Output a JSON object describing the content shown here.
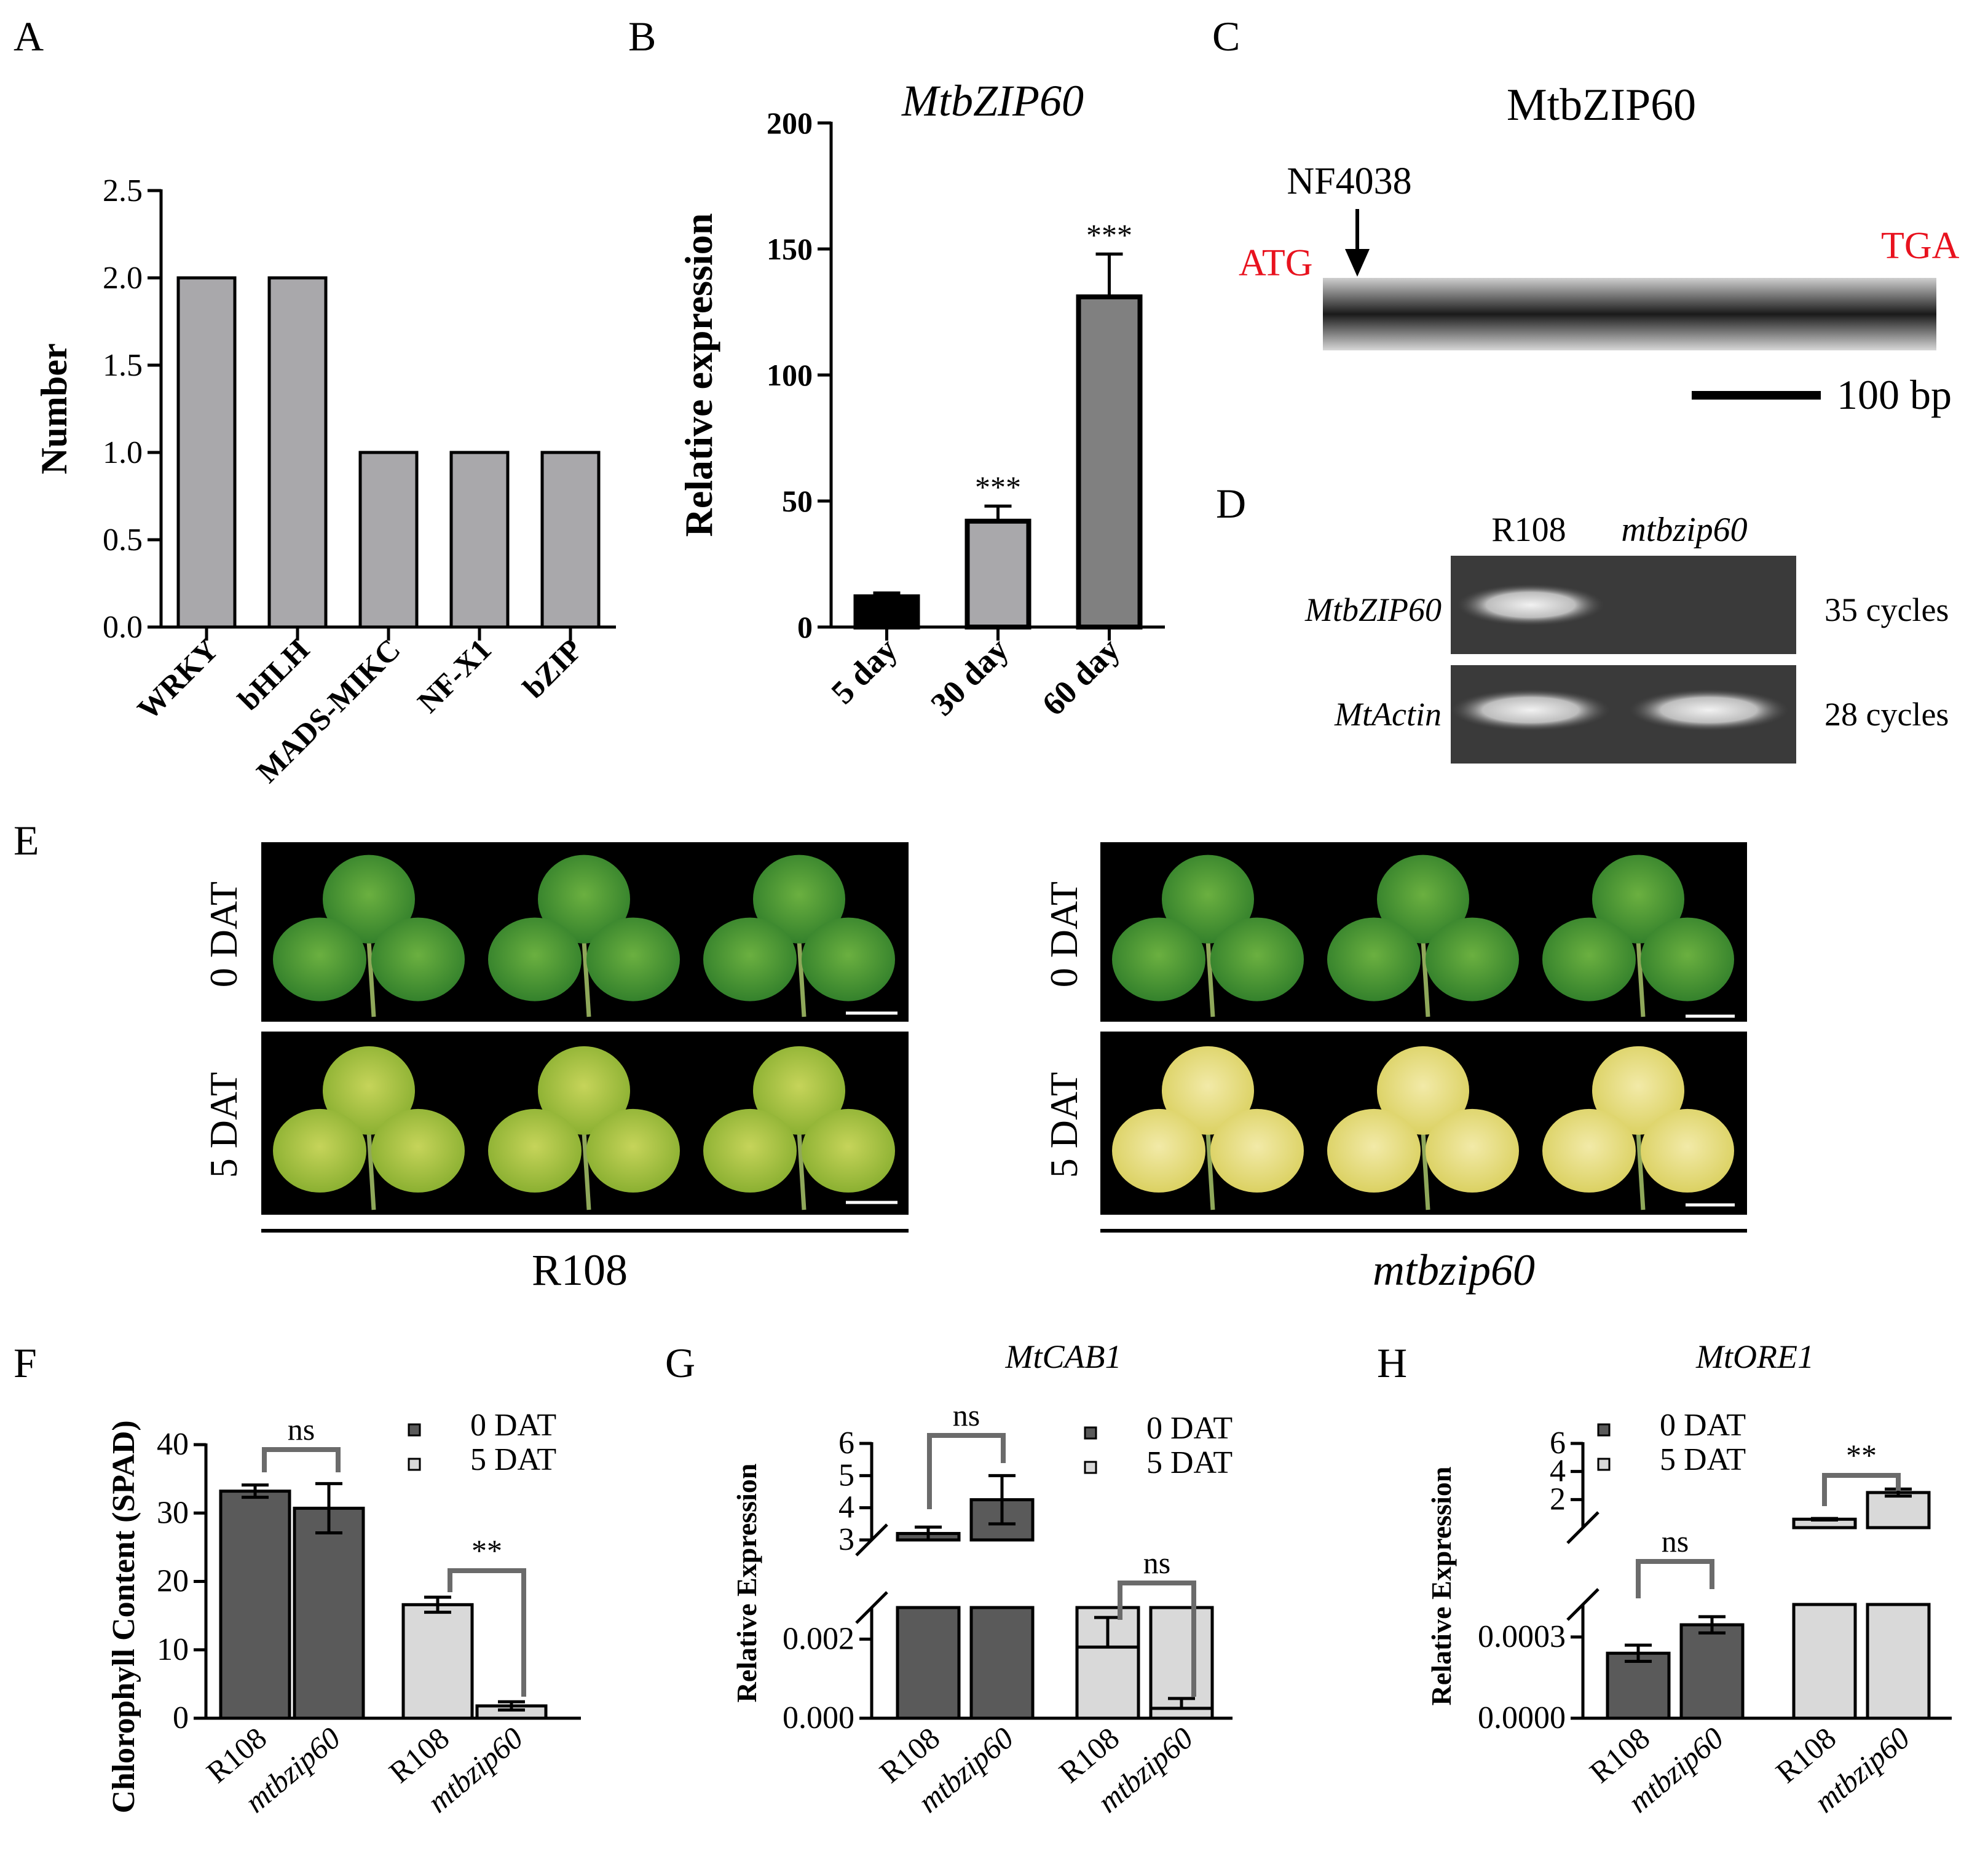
{
  "panels": {
    "A": "A",
    "B": "B",
    "C": "C",
    "D": "D",
    "E": "E",
    "F": "F",
    "G": "G",
    "H": "H"
  },
  "chart_data": [
    {
      "id": "A",
      "type": "bar",
      "ylabel": "Number",
      "categories": [
        "WRKY",
        "bHLH",
        "MADS-MIKC",
        "NF-X1",
        "bZIP"
      ],
      "values": [
        2,
        2,
        1,
        1,
        1
      ],
      "yticks": [
        "0.0",
        "0.5",
        "1.0",
        "1.5",
        "2.0",
        "2.5"
      ],
      "ylim": [
        0,
        2.5
      ],
      "color": "#a9a8ab"
    },
    {
      "id": "B",
      "type": "bar",
      "title": "MtbZIP60",
      "ylabel": "Relative expression",
      "categories": [
        "5 day",
        "30 day",
        "60 day"
      ],
      "values": [
        12,
        42,
        131
      ],
      "errors": [
        1.5,
        6,
        17
      ],
      "significance": [
        "",
        "***",
        "***"
      ],
      "colors": [
        "#000000",
        "#a9a8ab",
        "#808080"
      ],
      "yticks": [
        "0",
        "50",
        "100",
        "150",
        "200"
      ],
      "ylim": [
        0,
        200
      ]
    },
    {
      "id": "F",
      "type": "bar",
      "ylabel": "Chlorophyll Content (SPAD)",
      "legend": [
        "0 DAT",
        "5 DAT"
      ],
      "categories": [
        "R108",
        "mtbzip60",
        "R108",
        "mtbzip60"
      ],
      "groups": [
        "0 DAT",
        "0 DAT",
        "5 DAT",
        "5 DAT"
      ],
      "values": [
        33.2,
        30.7,
        16.6,
        1.8
      ],
      "errors": [
        0.9,
        3.6,
        1.1,
        0.6
      ],
      "brackets": [
        {
          "label": "ns"
        },
        {
          "label": "**"
        }
      ],
      "yticks": [
        "0",
        "10",
        "20",
        "30",
        "40"
      ],
      "ylim": [
        0,
        40
      ]
    },
    {
      "id": "G",
      "type": "bar",
      "title": "MtCAB1",
      "ylabel": "Relative Expression",
      "legend": [
        "0 DAT",
        "5 DAT"
      ],
      "categories": [
        "R108",
        "mtbzip60",
        "R108",
        "mtbzip60"
      ],
      "groups": [
        "0 DAT",
        "0 DAT",
        "5 DAT",
        "5 DAT"
      ],
      "values": [
        3.2,
        4.25,
        0.0018,
        0.00025
      ],
      "errors": [
        0.2,
        0.75,
        0.00075,
        0.00025
      ],
      "brackets": [
        {
          "label": "ns"
        },
        {
          "label": "ns"
        }
      ],
      "yticks_upper": [
        "3",
        "4",
        "5",
        "6"
      ],
      "yticks_lower": [
        "0.000",
        "0.002"
      ],
      "axis_break": true
    },
    {
      "id": "H",
      "type": "bar",
      "title": "MtORE1",
      "ylabel": "Relative Expression",
      "legend": [
        "0 DAT",
        "5 DAT"
      ],
      "categories": [
        "R108",
        "mtbzip60",
        "R108",
        "mtbzip60"
      ],
      "groups": [
        "0 DAT",
        "0 DAT",
        "5 DAT",
        "5 DAT"
      ],
      "values": [
        0.00024,
        0.000345,
        0.6,
        2.5
      ],
      "errors": [
        3e-05,
        3e-05,
        0.05,
        0.25
      ],
      "brackets": [
        {
          "label": "ns"
        },
        {
          "label": "**"
        }
      ],
      "yticks_upper": [
        "2",
        "4",
        "6"
      ],
      "yticks_lower": [
        "0.0000",
        "0.0003"
      ],
      "axis_break": true
    }
  ],
  "gene_diagram": {
    "title": "MtbZIP60",
    "insertion": "NF4038",
    "start_codon": "ATG",
    "stop_codon": "TGA",
    "scale_label": "100 bp"
  },
  "gel": {
    "lanes": [
      "R108",
      "mtbzip60"
    ],
    "rows": [
      {
        "gene": "MtbZIP60",
        "cycles": "35 cycles",
        "bands": [
          true,
          false
        ]
      },
      {
        "gene": "MtActin",
        "cycles": "28 cycles",
        "bands": [
          true,
          true
        ]
      }
    ]
  },
  "leaves": {
    "genotypes": [
      "R108",
      "mtbzip60"
    ],
    "timepoints": [
      "0 DAT",
      "5 DAT"
    ]
  }
}
